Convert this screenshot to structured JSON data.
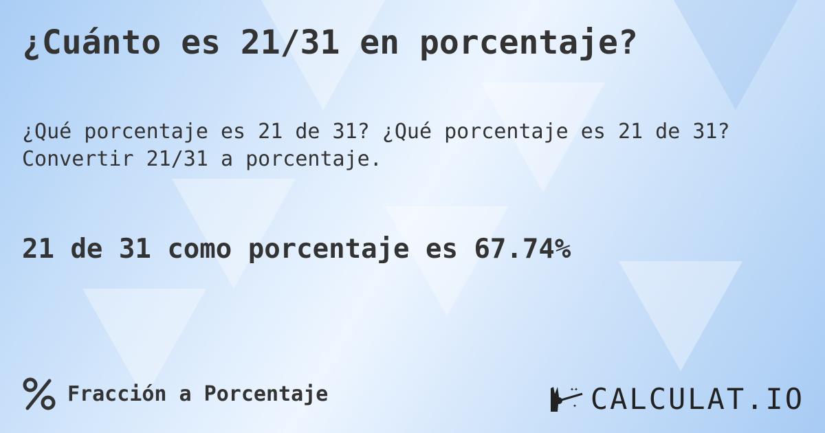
{
  "title": "¿Cuánto es 21/31 en porcentaje?",
  "subtitle": "¿Qué porcentaje es 21 de 31? ¿Qué porcentaje es 21 de 31? Convertir 21/31 a porcentaje.",
  "result": "21 de 31 como porcentaje es 67.74%",
  "footer": {
    "icon": "percent-icon",
    "label": "Fracción a Porcentaje"
  },
  "logo": {
    "text": "CALCULAT.IO",
    "icon": "magic-hand-icon"
  },
  "colors": {
    "text": "#333333",
    "background": "#cfe3fa"
  }
}
